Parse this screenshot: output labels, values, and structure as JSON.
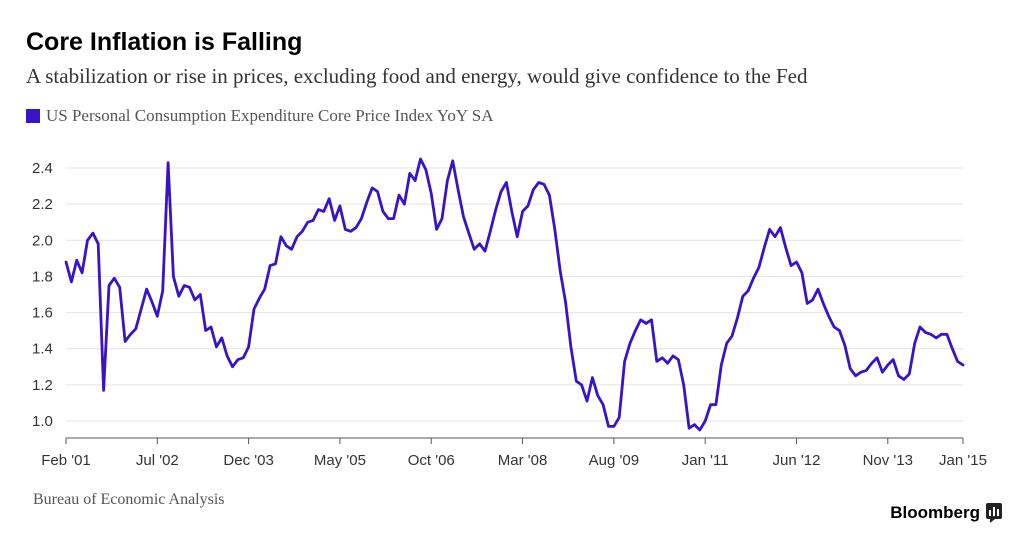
{
  "header": {
    "title": "Core Inflation is Falling",
    "subtitle": "A stabilization or rise in prices, excluding food and energy, would give confidence to the Fed"
  },
  "footer": {
    "source": "Bureau of Economic Analysis",
    "brand": "Bloomberg"
  },
  "colors": {
    "series": "#3a12c8",
    "grid": "#e3e3e3",
    "axis": "#555555"
  },
  "chart_data": {
    "type": "line",
    "title": "Core Inflation is Falling",
    "subtitle": "A stabilization or rise in prices, excluding food and energy, would give confidence to the Fed",
    "xlabel": "",
    "ylabel": "",
    "ylim": [
      0.94,
      2.5
    ],
    "yticks": [
      1.0,
      1.2,
      1.4,
      1.6,
      1.8,
      2.0,
      2.2,
      2.4
    ],
    "ytick_labels": [
      "1.0",
      "1.2",
      "1.4",
      "1.6",
      "1.8",
      "2.0",
      "2.2",
      "2.4"
    ],
    "xlim": [
      "2001-02",
      "2015-01"
    ],
    "xticks": [
      "2001-02",
      "2002-07",
      "2003-12",
      "2005-05",
      "2006-10",
      "2008-03",
      "2009-08",
      "2011-01",
      "2012-06",
      "2013-11",
      "2015-01"
    ],
    "xtick_labels": [
      "Feb '01",
      "Jul '02",
      "Dec '03",
      "May '05",
      "Oct '06",
      "Mar '08",
      "Aug '09",
      "Jan '11",
      "Jun '12",
      "Nov '13",
      "Jan '15"
    ],
    "grid": "horizontal",
    "legend_position": "top-left",
    "series": [
      {
        "name": "US Personal Consumption Expenditure Core Price Index YoY SA",
        "points": [
          [
            "2001-02",
            1.88
          ],
          [
            "2001-03",
            1.77
          ],
          [
            "2001-04",
            1.89
          ],
          [
            "2001-05",
            1.82
          ],
          [
            "2001-06",
            2.0
          ],
          [
            "2001-07",
            2.04
          ],
          [
            "2001-08",
            1.98
          ],
          [
            "2001-09",
            1.17
          ],
          [
            "2001-10",
            1.75
          ],
          [
            "2001-11",
            1.79
          ],
          [
            "2001-12",
            1.74
          ],
          [
            "2002-01",
            1.44
          ],
          [
            "2002-02",
            1.48
          ],
          [
            "2002-03",
            1.51
          ],
          [
            "2002-04",
            1.62
          ],
          [
            "2002-05",
            1.73
          ],
          [
            "2002-06",
            1.66
          ],
          [
            "2002-07",
            1.58
          ],
          [
            "2002-08",
            1.72
          ],
          [
            "2002-09",
            2.43
          ],
          [
            "2002-10",
            1.8
          ],
          [
            "2002-11",
            1.69
          ],
          [
            "2002-12",
            1.75
          ],
          [
            "2003-01",
            1.74
          ],
          [
            "2003-02",
            1.67
          ],
          [
            "2003-03",
            1.7
          ],
          [
            "2003-04",
            1.5
          ],
          [
            "2003-05",
            1.52
          ],
          [
            "2003-06",
            1.41
          ],
          [
            "2003-07",
            1.46
          ],
          [
            "2003-08",
            1.36
          ],
          [
            "2003-09",
            1.3
          ],
          [
            "2003-10",
            1.34
          ],
          [
            "2003-11",
            1.35
          ],
          [
            "2003-12",
            1.41
          ],
          [
            "2004-01",
            1.62
          ],
          [
            "2004-02",
            1.68
          ],
          [
            "2004-03",
            1.73
          ],
          [
            "2004-04",
            1.86
          ],
          [
            "2004-05",
            1.87
          ],
          [
            "2004-06",
            2.02
          ],
          [
            "2004-07",
            1.97
          ],
          [
            "2004-08",
            1.95
          ],
          [
            "2004-09",
            2.02
          ],
          [
            "2004-10",
            2.05
          ],
          [
            "2004-11",
            2.1
          ],
          [
            "2004-12",
            2.11
          ],
          [
            "2005-01",
            2.17
          ],
          [
            "2005-02",
            2.16
          ],
          [
            "2005-03",
            2.23
          ],
          [
            "2005-04",
            2.11
          ],
          [
            "2005-05",
            2.19
          ],
          [
            "2005-06",
            2.06
          ],
          [
            "2005-07",
            2.05
          ],
          [
            "2005-08",
            2.07
          ],
          [
            "2005-09",
            2.12
          ],
          [
            "2005-10",
            2.21
          ],
          [
            "2005-11",
            2.29
          ],
          [
            "2005-12",
            2.27
          ],
          [
            "2006-01",
            2.16
          ],
          [
            "2006-02",
            2.12
          ],
          [
            "2006-03",
            2.12
          ],
          [
            "2006-04",
            2.25
          ],
          [
            "2006-05",
            2.2
          ],
          [
            "2006-06",
            2.37
          ],
          [
            "2006-07",
            2.33
          ],
          [
            "2006-08",
            2.45
          ],
          [
            "2006-09",
            2.39
          ],
          [
            "2006-10",
            2.26
          ],
          [
            "2006-11",
            2.06
          ],
          [
            "2006-12",
            2.12
          ],
          [
            "2007-01",
            2.33
          ],
          [
            "2007-02",
            2.44
          ],
          [
            "2007-03",
            2.28
          ],
          [
            "2007-04",
            2.13
          ],
          [
            "2007-05",
            2.04
          ],
          [
            "2007-06",
            1.95
          ],
          [
            "2007-07",
            1.98
          ],
          [
            "2007-08",
            1.94
          ],
          [
            "2007-09",
            2.05
          ],
          [
            "2007-10",
            2.17
          ],
          [
            "2007-11",
            2.27
          ],
          [
            "2007-12",
            2.32
          ],
          [
            "2008-01",
            2.16
          ],
          [
            "2008-02",
            2.02
          ],
          [
            "2008-03",
            2.16
          ],
          [
            "2008-04",
            2.19
          ],
          [
            "2008-05",
            2.28
          ],
          [
            "2008-06",
            2.32
          ],
          [
            "2008-07",
            2.31
          ],
          [
            "2008-08",
            2.25
          ],
          [
            "2008-09",
            2.06
          ],
          [
            "2008-10",
            1.83
          ],
          [
            "2008-11",
            1.66
          ],
          [
            "2008-12",
            1.41
          ],
          [
            "2009-01",
            1.22
          ],
          [
            "2009-02",
            1.2
          ],
          [
            "2009-03",
            1.11
          ],
          [
            "2009-04",
            1.24
          ],
          [
            "2009-05",
            1.14
          ],
          [
            "2009-06",
            1.09
          ],
          [
            "2009-07",
            0.97
          ],
          [
            "2009-08",
            0.97
          ],
          [
            "2009-09",
            1.02
          ],
          [
            "2009-10",
            1.33
          ],
          [
            "2009-11",
            1.43
          ],
          [
            "2009-12",
            1.5
          ],
          [
            "2010-01",
            1.56
          ],
          [
            "2010-02",
            1.54
          ],
          [
            "2010-03",
            1.56
          ],
          [
            "2010-04",
            1.33
          ],
          [
            "2010-05",
            1.35
          ],
          [
            "2010-06",
            1.32
          ],
          [
            "2010-07",
            1.36
          ],
          [
            "2010-08",
            1.34
          ],
          [
            "2010-09",
            1.2
          ],
          [
            "2010-10",
            0.96
          ],
          [
            "2010-11",
            0.98
          ],
          [
            "2010-12",
            0.95
          ],
          [
            "2011-01",
            1.0
          ],
          [
            "2011-02",
            1.09
          ],
          [
            "2011-03",
            1.09
          ],
          [
            "2011-04",
            1.31
          ],
          [
            "2011-05",
            1.43
          ],
          [
            "2011-06",
            1.47
          ],
          [
            "2011-07",
            1.57
          ],
          [
            "2011-08",
            1.69
          ],
          [
            "2011-09",
            1.72
          ],
          [
            "2011-10",
            1.79
          ],
          [
            "2011-11",
            1.85
          ],
          [
            "2011-12",
            1.96
          ],
          [
            "2012-01",
            2.06
          ],
          [
            "2012-02",
            2.02
          ],
          [
            "2012-03",
            2.07
          ],
          [
            "2012-04",
            1.96
          ],
          [
            "2012-05",
            1.86
          ],
          [
            "2012-06",
            1.88
          ],
          [
            "2012-07",
            1.82
          ],
          [
            "2012-08",
            1.65
          ],
          [
            "2012-09",
            1.67
          ],
          [
            "2012-10",
            1.73
          ],
          [
            "2012-11",
            1.65
          ],
          [
            "2012-12",
            1.58
          ],
          [
            "2013-01",
            1.52
          ],
          [
            "2013-02",
            1.5
          ],
          [
            "2013-03",
            1.42
          ],
          [
            "2013-04",
            1.29
          ],
          [
            "2013-05",
            1.25
          ],
          [
            "2013-06",
            1.27
          ],
          [
            "2013-07",
            1.28
          ],
          [
            "2013-08",
            1.32
          ],
          [
            "2013-09",
            1.35
          ],
          [
            "2013-10",
            1.27
          ],
          [
            "2013-11",
            1.31
          ],
          [
            "2013-12",
            1.34
          ],
          [
            "2014-01",
            1.25
          ],
          [
            "2014-02",
            1.23
          ],
          [
            "2014-03",
            1.26
          ],
          [
            "2014-04",
            1.43
          ],
          [
            "2014-05",
            1.52
          ],
          [
            "2014-06",
            1.49
          ],
          [
            "2014-07",
            1.48
          ],
          [
            "2014-08",
            1.46
          ],
          [
            "2014-09",
            1.48
          ],
          [
            "2014-10",
            1.48
          ],
          [
            "2014-11",
            1.4
          ],
          [
            "2014-12",
            1.33
          ],
          [
            "2015-01",
            1.31
          ]
        ]
      }
    ]
  }
}
